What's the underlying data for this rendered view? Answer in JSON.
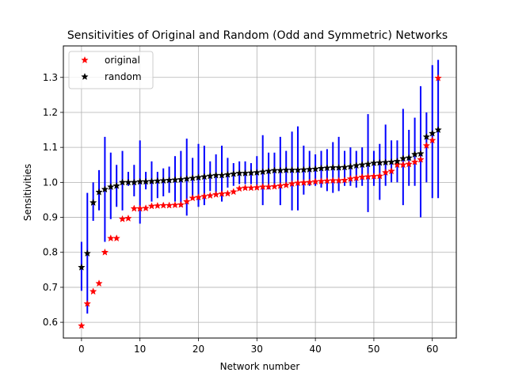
{
  "chart_data": {
    "type": "scatter",
    "title": "Sensitivities of Original and Random (Odd and Symmetric) Networks",
    "xlabel": "Network number",
    "ylabel": "Sensitivities",
    "xlim": [
      -3.1,
      64.1
    ],
    "ylim": [
      0.555,
      1.39
    ],
    "xticks": [
      0,
      10,
      20,
      30,
      40,
      50,
      60
    ],
    "yticks": [
      0.6,
      0.7,
      0.8,
      0.9,
      1.0,
      1.1,
      1.2,
      1.3
    ],
    "xtick_labels": [
      "0",
      "10",
      "20",
      "30",
      "40",
      "50",
      "60"
    ],
    "ytick_labels": [
      "0.6",
      "0.7",
      "0.8",
      "0.9",
      "1.0",
      "1.1",
      "1.2",
      "1.3"
    ],
    "grid": true,
    "legend_position": "top-left",
    "colors": {
      "original": "#ff0000",
      "random": "#000000",
      "errorbar": "#0000ff",
      "grid": "#b0b0b0"
    },
    "x": [
      0,
      1,
      2,
      3,
      4,
      5,
      6,
      7,
      8,
      9,
      10,
      11,
      12,
      13,
      14,
      15,
      16,
      17,
      18,
      19,
      20,
      21,
      22,
      23,
      24,
      25,
      26,
      27,
      28,
      29,
      30,
      31,
      32,
      33,
      34,
      35,
      36,
      37,
      38,
      39,
      40,
      41,
      42,
      43,
      44,
      45,
      46,
      47,
      48,
      49,
      50,
      51,
      52,
      53,
      54,
      55,
      56,
      57,
      58,
      59,
      60,
      61
    ],
    "series": [
      {
        "name": "original",
        "marker": "star",
        "values": [
          0.59,
          0.653,
          0.688,
          0.711,
          0.8,
          0.84,
          0.84,
          0.895,
          0.897,
          0.925,
          0.925,
          0.926,
          0.932,
          0.933,
          0.934,
          0.934,
          0.935,
          0.936,
          0.945,
          0.955,
          0.957,
          0.96,
          0.962,
          0.965,
          0.967,
          0.968,
          0.973,
          0.982,
          0.984,
          0.984,
          0.985,
          0.987,
          0.987,
          0.988,
          0.99,
          0.992,
          0.996,
          0.998,
          0.999,
          1.0,
          1.002,
          1.003,
          1.004,
          1.005,
          1.005,
          1.006,
          1.01,
          1.012,
          1.015,
          1.016,
          1.017,
          1.018,
          1.028,
          1.032,
          1.05,
          1.05,
          1.052,
          1.058,
          1.065,
          1.105,
          1.12,
          1.298
        ]
      },
      {
        "name": "random",
        "marker": "star",
        "values": [
          0.757,
          0.797,
          0.942,
          0.972,
          0.98,
          0.987,
          0.99,
          1.0,
          1.0,
          1.0,
          1.002,
          1.002,
          1.003,
          1.004,
          1.005,
          1.006,
          1.007,
          1.008,
          1.01,
          1.012,
          1.014,
          1.016,
          1.018,
          1.02,
          1.02,
          1.022,
          1.024,
          1.026,
          1.026,
          1.027,
          1.028,
          1.03,
          1.032,
          1.034,
          1.034,
          1.035,
          1.035,
          1.035,
          1.036,
          1.037,
          1.038,
          1.04,
          1.041,
          1.042,
          1.042,
          1.043,
          1.045,
          1.048,
          1.05,
          1.052,
          1.055,
          1.056,
          1.057,
          1.058,
          1.06,
          1.068,
          1.07,
          1.08,
          1.082,
          1.13,
          1.14,
          1.15
        ],
        "error_low": [
          0.69,
          0.625,
          0.89,
          0.92,
          0.83,
          0.895,
          0.93,
          0.92,
          0.99,
          0.96,
          0.882,
          0.98,
          0.945,
          0.955,
          0.96,
          0.97,
          0.945,
          0.93,
          0.905,
          0.96,
          0.93,
          0.935,
          0.975,
          0.97,
          0.945,
          0.985,
          0.99,
          0.995,
          0.995,
          0.995,
          0.98,
          0.935,
          0.98,
          0.985,
          0.935,
          0.99,
          0.92,
          0.92,
          0.965,
          0.99,
          0.99,
          0.985,
          0.975,
          0.97,
          0.975,
          0.99,
          0.99,
          0.985,
          0.99,
          0.915,
          0.99,
          0.95,
          0.99,
          1.0,
          1.0,
          0.935,
          0.99,
          0.99,
          0.9,
          1.0,
          0.955,
          0.955
        ],
        "error_high": [
          0.83,
          0.97,
          1.0,
          1.035,
          1.13,
          1.085,
          1.05,
          1.09,
          1.03,
          1.05,
          1.12,
          1.03,
          1.06,
          1.03,
          1.04,
          1.045,
          1.075,
          1.09,
          1.125,
          1.07,
          1.11,
          1.105,
          1.06,
          1.08,
          1.105,
          1.07,
          1.055,
          1.06,
          1.06,
          1.055,
          1.075,
          1.135,
          1.085,
          1.085,
          1.13,
          1.09,
          1.145,
          1.16,
          1.105,
          1.09,
          1.08,
          1.09,
          1.095,
          1.115,
          1.13,
          1.09,
          1.1,
          1.09,
          1.1,
          1.195,
          1.09,
          1.11,
          1.165,
          1.12,
          1.12,
          1.21,
          1.15,
          1.185,
          1.275,
          1.2,
          1.335,
          1.35
        ]
      }
    ]
  }
}
